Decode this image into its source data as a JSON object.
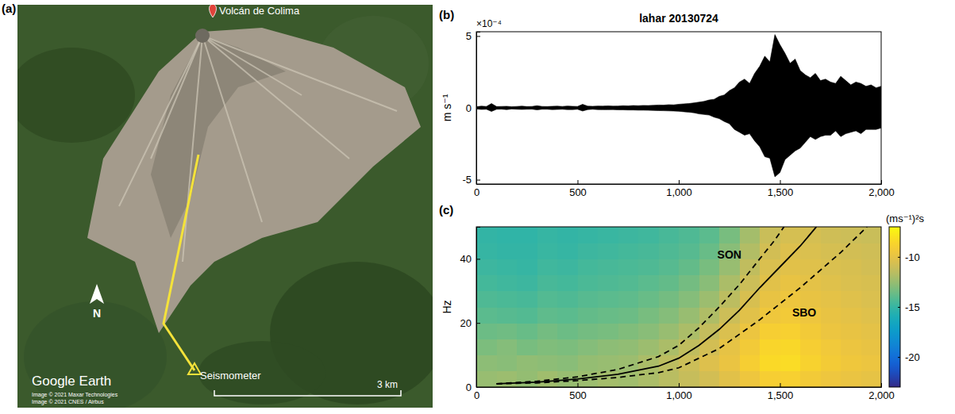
{
  "map": {
    "panel_label": "(a)",
    "summit_label": "Volcán de Colima",
    "station_label": "Seismometer",
    "north_label": "N",
    "logo": "Google Earth",
    "credits": [
      "Image © 2021 Maxar Technologies",
      "Image © 2021 CNES / Airbus"
    ],
    "scale_bar": "3 km"
  },
  "chart_data": [
    {
      "type": "area",
      "panel_label": "(b)",
      "title": "lahar 20130724",
      "y_label": "m s⁻¹",
      "y_multiplier": "×10⁻⁴",
      "color": "#000000",
      "xlim": [
        0,
        2000
      ],
      "xticks": [
        0,
        500,
        {
          "value": 1000,
          "label": "1,000"
        },
        {
          "value": 1500,
          "label": "1,500"
        },
        {
          "value": 2000,
          "label": "2,000"
        }
      ],
      "ylim": [
        -5.3,
        5.3
      ],
      "yticks": [
        -5,
        0,
        5
      ],
      "x": [
        0,
        25,
        50,
        75,
        100,
        125,
        150,
        175,
        200,
        225,
        250,
        275,
        300,
        325,
        350,
        375,
        400,
        425,
        450,
        475,
        500,
        525,
        550,
        575,
        600,
        625,
        650,
        675,
        700,
        725,
        750,
        775,
        800,
        825,
        850,
        875,
        900,
        925,
        950,
        975,
        1000,
        1025,
        1050,
        1075,
        1100,
        1125,
        1150,
        1175,
        1200,
        1225,
        1250,
        1275,
        1300,
        1325,
        1350,
        1375,
        1400,
        1425,
        1450,
        1475,
        1500,
        1525,
        1550,
        1575,
        1600,
        1625,
        1650,
        1675,
        1700,
        1725,
        1750,
        1775,
        1800,
        1825,
        1850,
        1875,
        1900,
        1925,
        1950,
        1975,
        2000
      ],
      "upper": [
        0.08,
        0.12,
        0.1,
        0.3,
        0.09,
        0.1,
        0.11,
        0.08,
        0.1,
        0.12,
        0.09,
        0.1,
        0.15,
        0.1,
        0.09,
        0.11,
        0.12,
        0.1,
        0.13,
        0.11,
        0.1,
        0.25,
        0.12,
        0.11,
        0.13,
        0.12,
        0.14,
        0.12,
        0.13,
        0.15,
        0.14,
        0.16,
        0.15,
        0.17,
        0.16,
        0.18,
        0.2,
        0.19,
        0.22,
        0.21,
        0.25,
        0.28,
        0.3,
        0.35,
        0.4,
        0.45,
        0.55,
        0.6,
        0.8,
        0.9,
        1.2,
        1.4,
        1.8,
        2.0,
        1.7,
        2.4,
        2.9,
        3.6,
        3.2,
        5.1,
        4.4,
        3.8,
        3.1,
        3.4,
        2.6,
        2.3,
        2.1,
        2.4,
        1.9,
        2.0,
        1.8,
        1.7,
        2.2,
        1.9,
        1.6,
        1.8,
        1.7,
        1.5,
        1.6,
        1.4,
        1.5
      ],
      "lower": [
        -0.08,
        -0.11,
        -0.1,
        -0.25,
        -0.1,
        -0.09,
        -0.12,
        -0.08,
        -0.1,
        -0.11,
        -0.1,
        -0.09,
        -0.14,
        -0.1,
        -0.1,
        -0.12,
        -0.11,
        -0.1,
        -0.12,
        -0.12,
        -0.1,
        -0.22,
        -0.12,
        -0.1,
        -0.12,
        -0.13,
        -0.13,
        -0.12,
        -0.14,
        -0.14,
        -0.15,
        -0.15,
        -0.16,
        -0.16,
        -0.17,
        -0.18,
        -0.19,
        -0.2,
        -0.21,
        -0.22,
        -0.24,
        -0.27,
        -0.3,
        -0.34,
        -0.42,
        -0.46,
        -0.5,
        -0.65,
        -0.75,
        -0.95,
        -1.1,
        -1.5,
        -1.7,
        -1.9,
        -1.8,
        -2.3,
        -2.7,
        -3.4,
        -3.5,
        -4.8,
        -4.5,
        -3.6,
        -3.3,
        -3.0,
        -2.8,
        -2.4,
        -2.0,
        -2.2,
        -2.0,
        -1.9,
        -1.9,
        -1.6,
        -2.0,
        -1.8,
        -1.7,
        -1.6,
        -1.8,
        -1.5,
        -1.5,
        -1.5,
        -1.4
      ]
    },
    {
      "type": "heatmap",
      "panel_label": "(c)",
      "y_label": "Hz",
      "xlim": [
        0,
        2000
      ],
      "xticks": [
        0,
        500,
        {
          "value": 1000,
          "label": "1,000"
        },
        {
          "value": 1500,
          "label": "1,500"
        },
        {
          "value": 2000,
          "label": "2,000"
        }
      ],
      "ylim": [
        0,
        50
      ],
      "yticks": [
        0,
        20,
        40
      ],
      "x_bins": [
        0,
        100,
        200,
        300,
        400,
        500,
        600,
        700,
        800,
        900,
        1000,
        1100,
        1200,
        1300,
        1400,
        1500,
        1600,
        1700,
        1800,
        1900,
        2000
      ],
      "y_bins": [
        0,
        5,
        10,
        15,
        20,
        25,
        30,
        35,
        40,
        45,
        50
      ],
      "cells": [
        [
          -12.5,
          -12.4,
          -12.6,
          -12.3,
          -12.5,
          -12.4,
          -12.2,
          -12.3,
          -12.0,
          -11.6,
          -11.2,
          -10.8,
          -10.2,
          -9.6,
          -9.0,
          -8.9,
          -9.3,
          -9.6,
          -9.8,
          -10.0
        ],
        [
          -12.8,
          -12.9,
          -12.7,
          -12.8,
          -12.9,
          -12.6,
          -12.5,
          -12.4,
          -12.0,
          -11.5,
          -11.0,
          -10.4,
          -9.8,
          -9.0,
          -8.4,
          -8.3,
          -8.8,
          -9.2,
          -9.5,
          -9.7
        ],
        [
          -13.2,
          -13.0,
          -13.3,
          -13.1,
          -13.2,
          -13.0,
          -12.8,
          -12.7,
          -12.4,
          -12.0,
          -11.4,
          -10.8,
          -10.0,
          -9.3,
          -8.6,
          -8.5,
          -9.0,
          -9.4,
          -9.7,
          -9.9
        ],
        [
          -13.6,
          -13.5,
          -13.7,
          -13.4,
          -13.6,
          -13.4,
          -13.3,
          -13.1,
          -12.9,
          -12.5,
          -12.0,
          -11.3,
          -10.5,
          -9.7,
          -9.0,
          -8.9,
          -9.3,
          -9.7,
          -9.9,
          -10.1
        ],
        [
          -14.0,
          -14.1,
          -14.2,
          -13.9,
          -14.0,
          -13.8,
          -13.7,
          -13.6,
          -13.3,
          -13.0,
          -12.5,
          -11.9,
          -11.0,
          -10.2,
          -9.5,
          -9.3,
          -9.6,
          -9.9,
          -10.1,
          -10.3
        ],
        [
          -14.3,
          -14.4,
          -14.5,
          -14.2,
          -14.3,
          -14.1,
          -14.0,
          -13.9,
          -13.7,
          -13.4,
          -13.0,
          -12.4,
          -11.5,
          -10.6,
          -9.9,
          -9.6,
          -9.9,
          -10.1,
          -10.3,
          -10.5
        ],
        [
          -14.6,
          -14.7,
          -14.8,
          -14.5,
          -14.6,
          -14.4,
          -14.3,
          -14.2,
          -14.0,
          -13.8,
          -13.4,
          -12.9,
          -12.0,
          -11.0,
          -10.2,
          -9.9,
          -10.1,
          -10.3,
          -10.5,
          -10.6
        ],
        [
          -14.8,
          -14.9,
          -15.0,
          -14.7,
          -14.8,
          -14.6,
          -14.5,
          -14.4,
          -14.3,
          -14.1,
          -13.8,
          -13.3,
          -12.5,
          -11.4,
          -10.5,
          -10.2,
          -10.3,
          -10.5,
          -10.6,
          -10.8
        ],
        [
          -15.0,
          -15.1,
          -15.1,
          -14.9,
          -15.0,
          -14.8,
          -14.7,
          -14.6,
          -14.5,
          -14.3,
          -14.1,
          -13.7,
          -12.9,
          -11.8,
          -10.8,
          -10.4,
          -10.5,
          -10.7,
          -10.8,
          -10.9
        ],
        [
          -15.1,
          -15.2,
          -15.2,
          -15.0,
          -15.1,
          -15.0,
          -14.9,
          -14.8,
          -14.7,
          -14.5,
          -14.3,
          -14.0,
          -13.3,
          -12.2,
          -11.1,
          -10.7,
          -10.7,
          -10.9,
          -11.0,
          -11.1
        ]
      ],
      "colorbar": {
        "label": "(ms⁻¹)²s",
        "range": [
          -23,
          -7
        ],
        "ticks": [
          -20,
          -15,
          -10
        ]
      },
      "curves": [
        {
          "line_style": "solid",
          "color": "#000000",
          "x": [
            100,
            300,
            500,
            700,
            900,
            1000,
            1100,
            1200,
            1300,
            1400,
            1500,
            1600,
            1680
          ],
          "y": [
            1,
            1.5,
            2.5,
            4,
            6.5,
            9,
            13,
            18,
            24,
            31,
            37.5,
            44,
            50
          ]
        },
        {
          "line_style": "dashed",
          "color": "#000000",
          "x": [
            100,
            300,
            500,
            700,
            900,
            1000,
            1100,
            1200,
            1300,
            1400,
            1470,
            1520
          ],
          "y": [
            1,
            1.8,
            3.2,
            5.5,
            9.5,
            13,
            18.5,
            25,
            32,
            40,
            45.5,
            50
          ]
        },
        {
          "line_style": "dashed",
          "color": "#000000",
          "x": [
            100,
            300,
            500,
            700,
            900,
            1000,
            1200,
            1400,
            1600,
            1800,
            1930
          ],
          "y": [
            1,
            1.3,
            2,
            3,
            4.5,
            6,
            12,
            21,
            31,
            42,
            50
          ]
        }
      ],
      "annotations": [
        {
          "text": "SON",
          "x": 1250,
          "y": 40
        },
        {
          "text": "SBO",
          "x": 1620,
          "y": 22
        }
      ]
    }
  ]
}
